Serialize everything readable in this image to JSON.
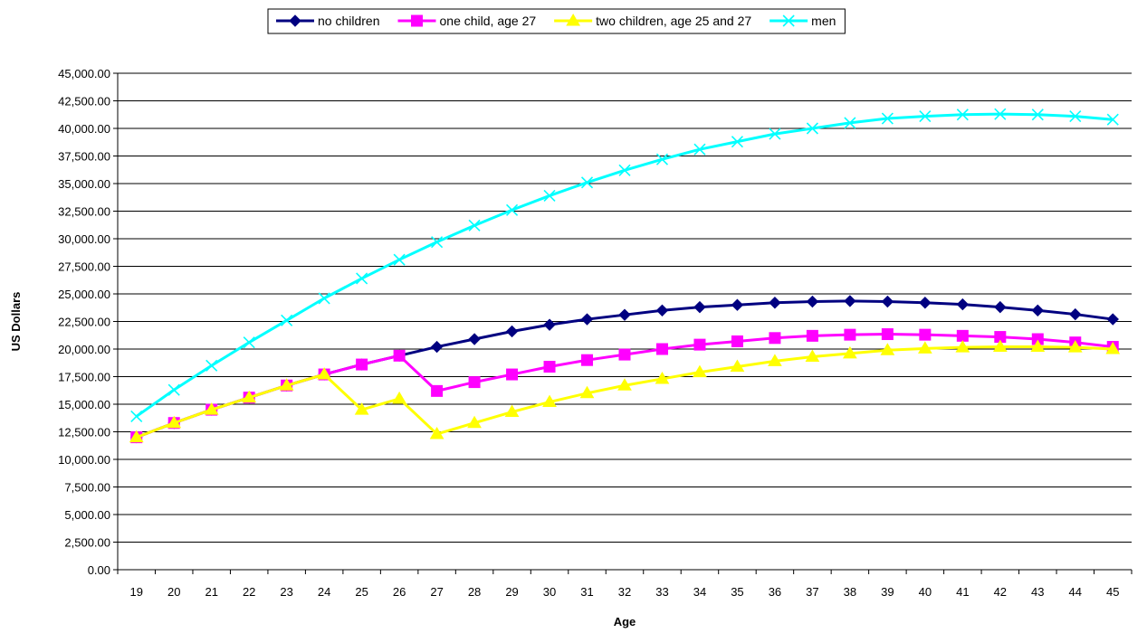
{
  "chart_data": {
    "type": "line",
    "title": "",
    "xlabel": "Age",
    "ylabel": "US Dollars",
    "ylim": [
      0,
      45000
    ],
    "ytick_step": 2500,
    "ytick_labels": [
      "0.00",
      "2,500.00",
      "5,000.00",
      "7,500.00",
      "10,000.00",
      "12,500.00",
      "15,000.00",
      "17,500.00",
      "20,000.00",
      "22,500.00",
      "25,000.00",
      "27,500.00",
      "30,000.00",
      "32,500.00",
      "35,000.00",
      "37,500.00",
      "40,000.00",
      "42,500.00",
      "45,000.00"
    ],
    "categories": [
      "19",
      "20",
      "21",
      "22",
      "23",
      "24",
      "25",
      "26",
      "27",
      "28",
      "29",
      "30",
      "31",
      "32",
      "33",
      "34",
      "35",
      "36",
      "37",
      "38",
      "39",
      "40",
      "41",
      "42",
      "43",
      "44",
      "45"
    ],
    "grid": "horizontal",
    "legend_position": "top",
    "series": [
      {
        "name": "no children",
        "color": "#000080",
        "marker": "diamond",
        "values": [
          12000,
          13300,
          14500,
          15600,
          16700,
          17700,
          18600,
          19400,
          20200,
          20900,
          21600,
          22200,
          22700,
          23100,
          23500,
          23800,
          24000,
          24200,
          24300,
          24350,
          24300,
          24200,
          24050,
          23800,
          23500,
          23150,
          22700
        ]
      },
      {
        "name": "one child, age 27",
        "color": "#FF00FF",
        "marker": "square",
        "values": [
          12000,
          13300,
          14500,
          15600,
          16700,
          17700,
          18600,
          19400,
          16200,
          17000,
          17700,
          18400,
          19000,
          19500,
          20000,
          20400,
          20700,
          21000,
          21200,
          21300,
          21350,
          21300,
          21200,
          21100,
          20900,
          20600,
          20200
        ]
      },
      {
        "name": "two children, age 25 and 27",
        "color": "#FFFF00",
        "marker": "triangle",
        "values": [
          12000,
          13300,
          14500,
          15600,
          16700,
          17700,
          14500,
          15500,
          12300,
          13300,
          14300,
          15200,
          16000,
          16700,
          17300,
          17900,
          18400,
          18900,
          19300,
          19600,
          19900,
          20050,
          20150,
          20200,
          20200,
          20150,
          20000
        ]
      },
      {
        "name": "men",
        "color": "#00FFFF",
        "marker": "x",
        "values": [
          13900,
          16300,
          18500,
          20600,
          22600,
          24600,
          26400,
          28100,
          29700,
          31200,
          32600,
          33900,
          35100,
          36200,
          37200,
          38100,
          38800,
          39500,
          40000,
          40500,
          40900,
          41100,
          41250,
          41300,
          41250,
          41100,
          40800
        ]
      }
    ]
  }
}
